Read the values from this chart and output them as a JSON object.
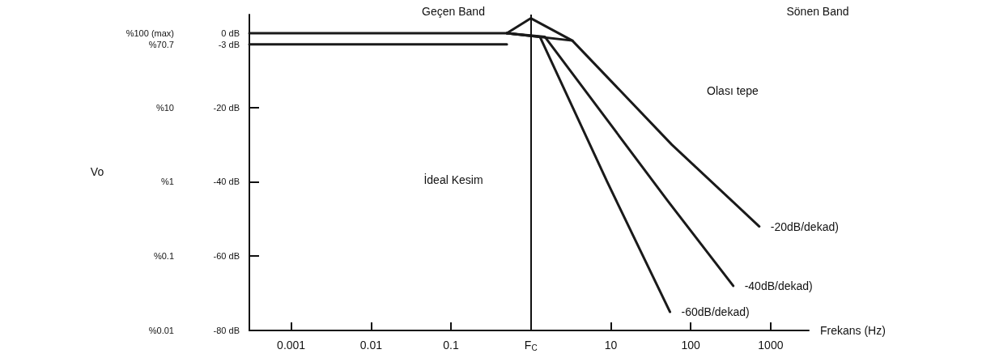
{
  "chart_data": {
    "type": "line",
    "xlabel": "Frekans (Hz)",
    "log": "x",
    "xlim": [
      0.0003,
      3000
    ],
    "xticks": [
      0.001,
      0.01,
      0.1,
      {
        "value": 1,
        "label": "F$_{C}$"
      },
      10,
      100,
      1000
    ],
    "ylim": [
      -80,
      5
    ],
    "yticks": [
      {
        "value": 0,
        "label": "0 dB"
      },
      {
        "value": -3,
        "label": "-3 dB"
      },
      {
        "value": -20,
        "label": "-20 dB"
      },
      {
        "value": -40,
        "label": "-40 dB"
      },
      {
        "value": -60,
        "label": "-60 dB"
      },
      {
        "value": -80,
        "label": "-80 dB"
      }
    ],
    "series": [
      {
        "color": "#1a1a1a",
        "x": [
          0.0003,
          0.5,
          1,
          3.3
        ],
        "values": [
          0,
          0,
          4,
          -2
        ]
      },
      {
        "color": "#1a1a1a",
        "x": [
          0.0003,
          0.5
        ],
        "values": [
          -3,
          -3
        ]
      },
      {
        "name": "-20dB/dekad)",
        "color": "#1a1a1a",
        "x": [
          0.5,
          3.3,
          58,
          720
        ],
        "values": [
          0,
          -2,
          -30,
          -52
        ]
      },
      {
        "name": "-40dB/dekad)",
        "color": "#1a1a1a",
        "x": [
          0.5,
          1.5,
          51,
          340
        ],
        "values": [
          0,
          -1,
          -45,
          -68
        ]
      },
      {
        "name": "-60dB/dekad)",
        "color": "#1a1a1a",
        "x": [
          0.5,
          1.3,
          9,
          55
        ],
        "values": [
          0,
          -1,
          -40,
          -75
        ]
      }
    ],
    "ref_lines": [
      {
        "axis": "x",
        "value": 1,
        "label": null
      }
    ],
    "annotations": [
      "Geçen Band",
      "Sönen Band",
      "İdeal Kesim",
      "Olası tepe",
      "Vo",
      "%100 (max)",
      "%70.7",
      "%10",
      "%1",
      "%0.1",
      "%0.01"
    ],
    "marker": "none",
    "line_style": "solid",
    "grid": false,
    "legend": false
  }
}
